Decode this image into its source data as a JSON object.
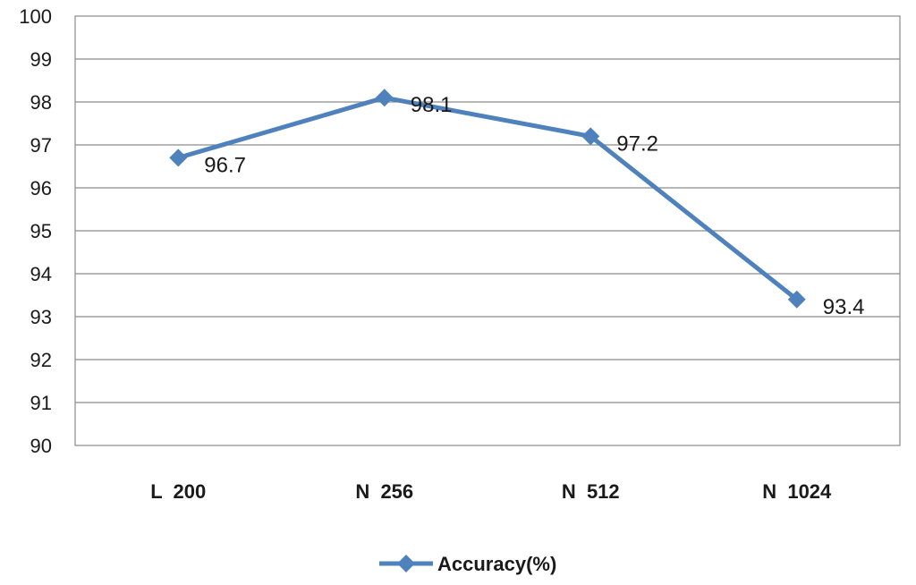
{
  "chart_data": {
    "type": "line",
    "title": "",
    "xlabel": "",
    "ylabel": "",
    "categories": [
      "L  200",
      "N  256",
      "N  512",
      "N  1024"
    ],
    "series": [
      {
        "name": "Accuracy(%)",
        "values": [
          96.7,
          98.1,
          97.2,
          93.4
        ],
        "color": "#4F81BD"
      }
    ],
    "ylim": [
      90,
      100
    ],
    "yticks": [
      "90",
      "91",
      "92",
      "93",
      "94",
      "95",
      "96",
      "97",
      "98",
      "99",
      "100"
    ],
    "data_labels": [
      "96.7",
      "98.1",
      "97.2",
      "93.4"
    ],
    "grid": true,
    "legend": "bottom-center"
  }
}
